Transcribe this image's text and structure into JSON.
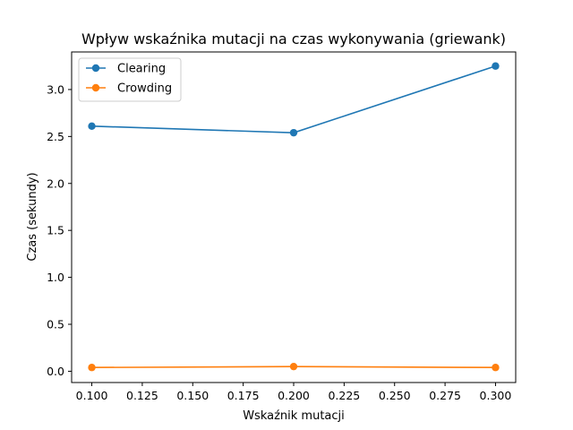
{
  "chart_data": {
    "type": "line",
    "title": "Wpływ wskaźnika mutacji na czas wykonywania (griewank)",
    "xlabel": "Wskaźnik mutacji",
    "ylabel": "Czas (sekundy)",
    "x": [
      0.1,
      0.2,
      0.3
    ],
    "xlim": [
      0.09,
      0.31
    ],
    "ylim": [
      -0.12,
      3.4
    ],
    "xticks": [
      "0.100",
      "0.125",
      "0.150",
      "0.175",
      "0.200",
      "0.225",
      "0.250",
      "0.275",
      "0.300"
    ],
    "yticks": [
      "0.0",
      "0.5",
      "1.0",
      "1.5",
      "2.0",
      "2.5",
      "3.0"
    ],
    "grid": false,
    "legend_position": "top-left",
    "series": [
      {
        "name": "Clearing",
        "color": "#1f77b4",
        "values": [
          2.61,
          2.54,
          3.25
        ]
      },
      {
        "name": "Crowding",
        "color": "#ff7f0e",
        "values": [
          0.04,
          0.05,
          0.04
        ]
      }
    ]
  }
}
